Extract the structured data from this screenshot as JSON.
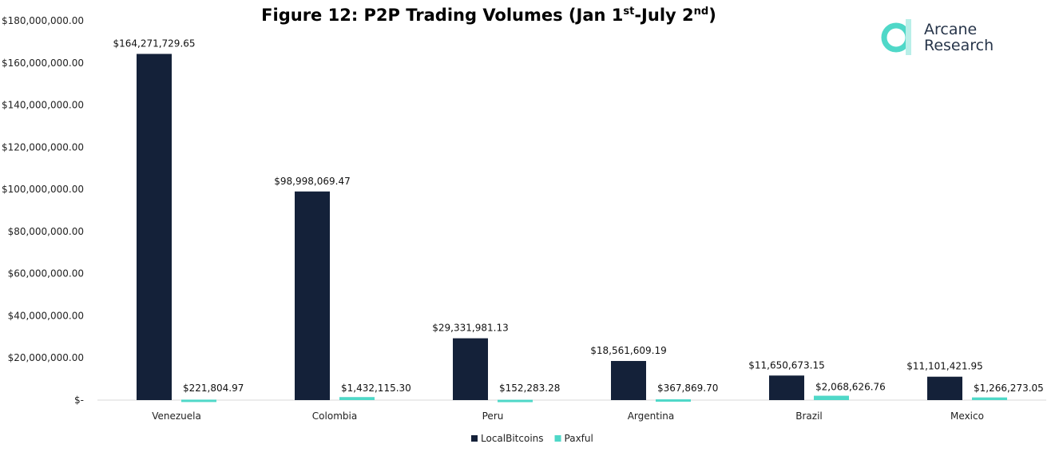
{
  "chart_data": {
    "type": "bar",
    "title": "Figure 12: P2P Trading Volumes (Jan 1st-July 2nd)",
    "title_parts": {
      "main": "Figure 12: P2P Trading Volumes (Jan 1",
      "sup1": "st",
      "mid": "-July 2",
      "sup2": "nd",
      "end": ")"
    },
    "categories": [
      "Venezuela",
      "Colombia",
      "Peru",
      "Argentina",
      "Brazil",
      "Mexico"
    ],
    "series": [
      {
        "name": "LocalBitcoins",
        "color": "#142139",
        "values": [
          164271729.65,
          98998069.47,
          29331981.13,
          18561609.19,
          11650673.15,
          11101421.95
        ],
        "labels": [
          "$164,271,729.65",
          "$98,998,069.47",
          "$29,331,981.13",
          "$18,561,609.19",
          "$11,650,673.15",
          "$11,101,421.95"
        ]
      },
      {
        "name": "Paxful",
        "color": "#4fd8c8",
        "values": [
          221804.97,
          1432115.3,
          152283.28,
          367869.7,
          2068626.76,
          1266273.05
        ],
        "labels": [
          "$221,804.97",
          "$1,432,115.30",
          "$152,283.28",
          "$367,869.70",
          "$2,068,626.76",
          "$1,266,273.05"
        ]
      }
    ],
    "ylim": [
      0,
      180000000
    ],
    "yticks": [
      0,
      20000000,
      40000000,
      60000000,
      80000000,
      100000000,
      120000000,
      140000000,
      160000000,
      180000000
    ],
    "ytick_labels": [
      "$-",
      "$20,000,000.00",
      "$40,000,000.00",
      "$60,000,000.00",
      "$80,000,000.00",
      "$100,000,000.00",
      "$120,000,000.00",
      "$140,000,000.00",
      "$160,000,000.00",
      "$180,000,000.00"
    ],
    "grid": false,
    "legend": "bottom"
  },
  "logo": {
    "line1": "Arcane",
    "line2": "Research",
    "color": "#4fd8c8"
  }
}
